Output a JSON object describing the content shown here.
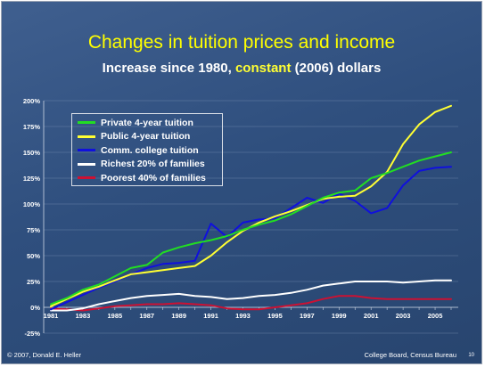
{
  "slide": {
    "title": "Changes in tuition prices and income",
    "subtitle_before": "Increase since 1980, ",
    "subtitle_highlight": "constant",
    "subtitle_after": " (2006) dollars",
    "footer_left": "© 2007, Donald E. Heller",
    "footer_right": "College Board, Census Bureau",
    "page_number": "10"
  },
  "chart_data": {
    "type": "line",
    "x": [
      1981,
      1982,
      1983,
      1984,
      1985,
      1986,
      1987,
      1988,
      1989,
      1990,
      1991,
      1992,
      1993,
      1994,
      1995,
      1996,
      1997,
      1998,
      1999,
      2000,
      2001,
      2002,
      2003,
      2004,
      2005,
      2006
    ],
    "xticks": [
      "1981",
      "1983",
      "1985",
      "1987",
      "1989",
      "1991",
      "1993",
      "1995",
      "1997",
      "1999",
      "2001",
      "2003",
      "2005"
    ],
    "yticks": [
      "-25%",
      "0%",
      "25%",
      "50%",
      "75%",
      "100%",
      "125%",
      "150%",
      "175%",
      "200%"
    ],
    "ylim": [
      -25,
      200
    ],
    "legend_position": "top-left",
    "grid": "horizontal",
    "series": [
      {
        "name": "Private 4-year tuition",
        "color": "#22dd22",
        "values": [
          3,
          9,
          17,
          22,
          30,
          38,
          41,
          53,
          58,
          62,
          65,
          69,
          75,
          80,
          84,
          90,
          98,
          106,
          111,
          113,
          125,
          130,
          136,
          142,
          146,
          150
        ]
      },
      {
        "name": "Public 4-year tuition",
        "color": "#ffff33",
        "values": [
          1,
          8,
          15,
          20,
          26,
          32,
          34,
          36,
          38,
          40,
          50,
          63,
          74,
          82,
          88,
          93,
          99,
          105,
          107,
          108,
          117,
          131,
          158,
          177,
          189,
          195
        ]
      },
      {
        "name": "Comm. college tuition",
        "color": "#1010dd",
        "values": [
          -2,
          5,
          12,
          19,
          25,
          32,
          38,
          42,
          43,
          45,
          81,
          68,
          82,
          85,
          86,
          96,
          106,
          101,
          110,
          103,
          91,
          96,
          118,
          132,
          135,
          136
        ]
      },
      {
        "name": "Richest 20% of families",
        "color": "#ffffff",
        "values": [
          -3,
          -3,
          -1,
          3,
          6,
          9,
          11,
          12,
          13,
          11,
          10,
          8,
          9,
          11,
          12,
          14,
          17,
          21,
          23,
          25,
          25,
          25,
          24,
          25,
          26,
          26
        ]
      },
      {
        "name": "Poorest 40% of families",
        "color": "#cc1133",
        "values": [
          -1,
          -2,
          -3,
          -1,
          1,
          2,
          3,
          3,
          4,
          3,
          2,
          -1,
          -2,
          -2,
          0,
          2,
          4,
          8,
          11,
          11,
          9,
          8,
          8,
          8,
          8,
          8
        ]
      }
    ]
  }
}
